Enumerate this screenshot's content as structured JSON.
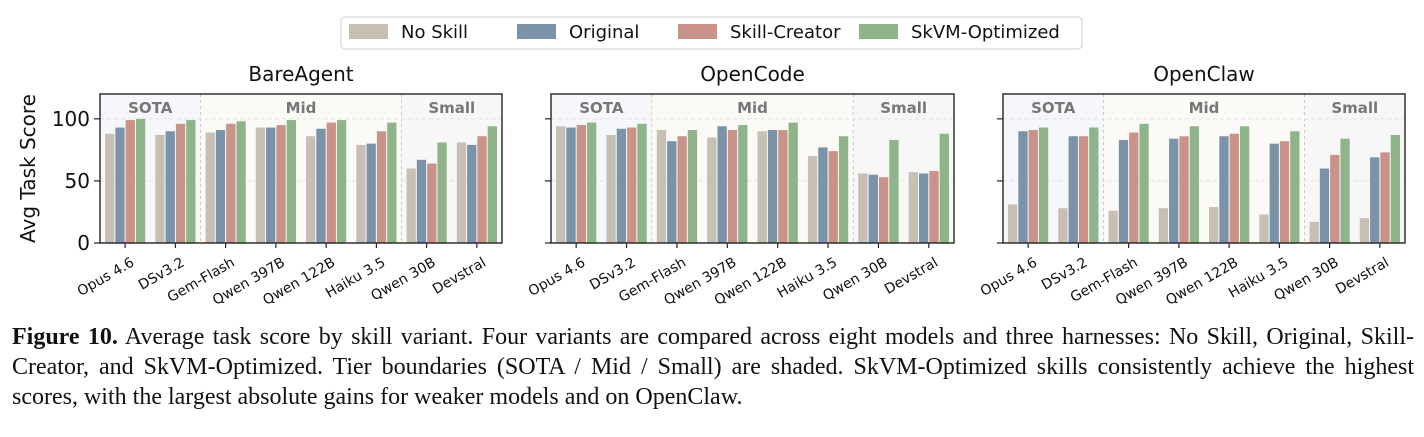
{
  "legend": {
    "items": [
      {
        "label": "No Skill",
        "color": "#c8bfb4"
      },
      {
        "label": "Original",
        "color": "#7b93a8"
      },
      {
        "label": "Skill-Creator",
        "color": "#c9938a"
      },
      {
        "label": "SkVM-Optimized",
        "color": "#8fb48a"
      }
    ]
  },
  "caption": {
    "label": "Figure 10.",
    "text": "Average task score by skill variant. Four variants are compared across eight models and three harnesses: No Skill, Original, Skill-Creator, and SkVM-Optimized. Tier boundaries (SOTA / Mid / Small) are shaded. SkVM-Optimized skills consistently achieve the highest scores, with the largest absolute gains for weaker models and on OpenClaw."
  },
  "chart_data": [
    {
      "type": "bar",
      "title": "BareAgent",
      "ylabel": "Avg Task Score",
      "ylim": [
        0,
        120
      ],
      "yticks": [
        0,
        50,
        100
      ],
      "grid": true,
      "categories": [
        "Opus 4.6",
        "DSv3.2",
        "Gem-Flash",
        "Qwen 397B",
        "Qwen 122B",
        "Haiku 3.5",
        "Qwen 30B",
        "Devstral"
      ],
      "tiers": [
        {
          "label": "SOTA",
          "start": 0,
          "end": 1
        },
        {
          "label": "Mid",
          "start": 2,
          "end": 5
        },
        {
          "label": "Small",
          "start": 6,
          "end": 7
        }
      ],
      "series": [
        {
          "name": "No Skill",
          "values": [
            88,
            87,
            89,
            93,
            86,
            79,
            60,
            81
          ]
        },
        {
          "name": "Original",
          "values": [
            93,
            90,
            91,
            93,
            92,
            80,
            67,
            79
          ]
        },
        {
          "name": "Skill-Creator",
          "values": [
            99,
            96,
            96,
            95,
            97,
            90,
            64,
            86
          ]
        },
        {
          "name": "SkVM-Optimized",
          "values": [
            100,
            99,
            98,
            99,
            99,
            97,
            81,
            94
          ]
        }
      ]
    },
    {
      "type": "bar",
      "title": "OpenCode",
      "ylim": [
        0,
        120
      ],
      "yticks": [
        0,
        50,
        100
      ],
      "grid": true,
      "categories": [
        "Opus 4.6",
        "DSv3.2",
        "Gem-Flash",
        "Qwen 397B",
        "Qwen 122B",
        "Haiku 3.5",
        "Qwen 30B",
        "Devstral"
      ],
      "tiers": [
        {
          "label": "SOTA",
          "start": 0,
          "end": 1
        },
        {
          "label": "Mid",
          "start": 2,
          "end": 5
        },
        {
          "label": "Small",
          "start": 6,
          "end": 7
        }
      ],
      "series": [
        {
          "name": "No Skill",
          "values": [
            94,
            87,
            91,
            85,
            90,
            70,
            56,
            57
          ]
        },
        {
          "name": "Original",
          "values": [
            93,
            92,
            82,
            94,
            91,
            77,
            55,
            56
          ]
        },
        {
          "name": "Skill-Creator",
          "values": [
            95,
            93,
            86,
            91,
            91,
            74,
            53,
            58
          ]
        },
        {
          "name": "SkVM-Optimized",
          "values": [
            97,
            96,
            91,
            95,
            97,
            86,
            83,
            88
          ]
        }
      ]
    },
    {
      "type": "bar",
      "title": "OpenClaw",
      "ylim": [
        0,
        120
      ],
      "yticks": [
        0,
        50,
        100
      ],
      "grid": true,
      "categories": [
        "Opus 4.6",
        "DSv3.2",
        "Gem-Flash",
        "Qwen 397B",
        "Qwen 122B",
        "Haiku 3.5",
        "Qwen 30B",
        "Devstral"
      ],
      "tiers": [
        {
          "label": "SOTA",
          "start": 0,
          "end": 1
        },
        {
          "label": "Mid",
          "start": 2,
          "end": 5
        },
        {
          "label": "Small",
          "start": 6,
          "end": 7
        }
      ],
      "series": [
        {
          "name": "No Skill",
          "values": [
            31,
            28,
            26,
            28,
            29,
            23,
            17,
            20
          ]
        },
        {
          "name": "Original",
          "values": [
            90,
            86,
            83,
            84,
            86,
            80,
            60,
            69
          ]
        },
        {
          "name": "Skill-Creator",
          "values": [
            91,
            86,
            89,
            86,
            88,
            82,
            71,
            73
          ]
        },
        {
          "name": "SkVM-Optimized",
          "values": [
            93,
            93,
            96,
            94,
            94,
            90,
            84,
            87
          ]
        }
      ]
    }
  ]
}
